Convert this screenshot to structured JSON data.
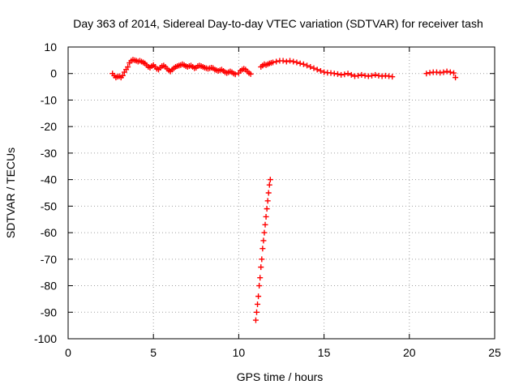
{
  "chart_data": {
    "type": "scatter",
    "title": "Day 363 of 2014, Sidereal Day-to-day VTEC variation (SDTVAR) for receiver tash",
    "xlabel": "GPS time / hours",
    "ylabel": "SDTVAR / TECUs",
    "xlim": [
      0,
      25
    ],
    "ylim": [
      -100,
      10
    ],
    "xticks": [
      0,
      5,
      10,
      15,
      20,
      25
    ],
    "yticks": [
      10,
      0,
      -10,
      -20,
      -30,
      -40,
      -50,
      -60,
      -70,
      -80,
      -90,
      -100
    ],
    "xtick_labels": [
      "0",
      "5",
      "10",
      "15",
      "20",
      "25"
    ],
    "ytick_labels": [
      "10",
      "0",
      "-10",
      "-20",
      "-30",
      "-40",
      "-50",
      "-60",
      "-70",
      "-80",
      "-90",
      "-100"
    ],
    "grid": true,
    "grid_style": "dotted",
    "marker": "+",
    "marker_color": "#ff0000",
    "series": [
      {
        "points": [
          [
            2.6,
            0.0
          ],
          [
            2.7,
            -0.8
          ],
          [
            2.8,
            -1.5
          ],
          [
            2.9,
            -1.2
          ],
          [
            3.0,
            -1.0
          ],
          [
            3.1,
            -1.5
          ],
          [
            3.2,
            -0.8
          ],
          [
            3.3,
            0.5
          ],
          [
            3.4,
            1.5
          ],
          [
            3.5,
            2.5
          ],
          [
            3.6,
            4.0
          ],
          [
            3.7,
            4.8
          ],
          [
            3.8,
            5.2
          ],
          [
            3.9,
            5.0
          ],
          [
            4.0,
            4.8
          ],
          [
            4.1,
            4.5
          ],
          [
            4.2,
            4.8
          ],
          [
            4.3,
            4.5
          ],
          [
            4.4,
            4.2
          ],
          [
            4.5,
            3.8
          ],
          [
            4.6,
            3.2
          ],
          [
            4.7,
            2.5
          ],
          [
            4.8,
            2.2
          ],
          [
            4.9,
            2.8
          ],
          [
            5.0,
            3.2
          ],
          [
            5.1,
            2.5
          ],
          [
            5.2,
            1.8
          ],
          [
            5.3,
            1.5
          ],
          [
            5.4,
            2.2
          ],
          [
            5.5,
            2.8
          ],
          [
            5.6,
            3.0
          ],
          [
            5.7,
            2.5
          ],
          [
            5.8,
            1.8
          ],
          [
            5.9,
            1.2
          ],
          [
            6.0,
            0.8
          ],
          [
            6.1,
            1.5
          ],
          [
            6.2,
            2.0
          ],
          [
            6.3,
            2.5
          ],
          [
            6.4,
            2.8
          ],
          [
            6.5,
            3.0
          ],
          [
            6.6,
            3.2
          ],
          [
            6.7,
            3.5
          ],
          [
            6.8,
            3.2
          ],
          [
            6.9,
            2.8
          ],
          [
            7.0,
            2.5
          ],
          [
            7.1,
            2.8
          ],
          [
            7.2,
            3.0
          ],
          [
            7.3,
            2.5
          ],
          [
            7.4,
            2.0
          ],
          [
            7.5,
            2.2
          ],
          [
            7.6,
            2.8
          ],
          [
            7.7,
            3.0
          ],
          [
            7.8,
            2.8
          ],
          [
            7.9,
            2.5
          ],
          [
            8.0,
            2.2
          ],
          [
            8.1,
            2.0
          ],
          [
            8.2,
            1.8
          ],
          [
            8.3,
            2.0
          ],
          [
            8.4,
            2.2
          ],
          [
            8.5,
            2.0
          ],
          [
            8.6,
            1.5
          ],
          [
            8.7,
            1.2
          ],
          [
            8.8,
            1.0
          ],
          [
            8.9,
            1.2
          ],
          [
            9.0,
            1.5
          ],
          [
            9.1,
            1.0
          ],
          [
            9.2,
            0.5
          ],
          [
            9.3,
            0.2
          ],
          [
            9.4,
            0.5
          ],
          [
            9.5,
            0.8
          ],
          [
            9.6,
            0.5
          ],
          [
            9.7,
            0.0
          ],
          [
            9.8,
            -0.3
          ],
          [
            10.0,
            0.2
          ],
          [
            10.1,
            1.0
          ],
          [
            10.2,
            1.5
          ],
          [
            10.3,
            1.8
          ],
          [
            10.4,
            1.5
          ],
          [
            10.5,
            0.8
          ],
          [
            10.6,
            0.2
          ],
          [
            10.7,
            -0.2
          ],
          [
            11.3,
            2.5
          ],
          [
            11.4,
            3.0
          ],
          [
            11.5,
            3.5
          ],
          [
            11.6,
            3.2
          ],
          [
            11.7,
            3.5
          ],
          [
            11.8,
            3.8
          ],
          [
            11.9,
            4.0
          ],
          [
            12.0,
            4.2
          ],
          [
            12.2,
            4.5
          ],
          [
            12.4,
            4.8
          ],
          [
            12.6,
            4.8
          ],
          [
            12.8,
            4.5
          ],
          [
            13.0,
            4.8
          ],
          [
            13.2,
            4.5
          ],
          [
            13.4,
            4.2
          ],
          [
            13.6,
            3.8
          ],
          [
            13.8,
            3.5
          ],
          [
            14.0,
            3.0
          ],
          [
            14.2,
            2.5
          ],
          [
            14.4,
            2.0
          ],
          [
            14.6,
            1.5
          ],
          [
            14.8,
            1.0
          ],
          [
            15.0,
            0.5
          ],
          [
            15.2,
            0.3
          ],
          [
            15.4,
            0.2
          ],
          [
            15.6,
            0.0
          ],
          [
            15.8,
            -0.2
          ],
          [
            16.0,
            -0.5
          ],
          [
            16.2,
            -0.3
          ],
          [
            16.4,
            0.0
          ],
          [
            16.6,
            -0.5
          ],
          [
            16.8,
            -1.0
          ],
          [
            17.0,
            -0.8
          ],
          [
            17.2,
            -0.5
          ],
          [
            17.4,
            -0.8
          ],
          [
            17.6,
            -1.0
          ],
          [
            17.8,
            -0.8
          ],
          [
            18.0,
            -0.5
          ],
          [
            18.2,
            -0.8
          ],
          [
            18.4,
            -1.0
          ],
          [
            18.6,
            -0.8
          ],
          [
            18.8,
            -1.0
          ],
          [
            19.0,
            -1.2
          ],
          [
            21.0,
            0.0
          ],
          [
            21.2,
            0.3
          ],
          [
            21.4,
            0.5
          ],
          [
            21.6,
            0.5
          ],
          [
            21.8,
            0.3
          ],
          [
            22.0,
            0.5
          ],
          [
            22.2,
            0.8
          ],
          [
            22.4,
            0.5
          ],
          [
            22.6,
            0.2
          ],
          [
            22.7,
            -1.5
          ],
          [
            11.0,
            -93.0
          ],
          [
            11.05,
            -90.0
          ],
          [
            11.1,
            -87.0
          ],
          [
            11.15,
            -84.0
          ],
          [
            11.2,
            -80.0
          ],
          [
            11.25,
            -77.0
          ],
          [
            11.3,
            -73.0
          ],
          [
            11.35,
            -70.0
          ],
          [
            11.4,
            -66.0
          ],
          [
            11.45,
            -63.0
          ],
          [
            11.5,
            -60.0
          ],
          [
            11.55,
            -57.0
          ],
          [
            11.6,
            -54.0
          ],
          [
            11.65,
            -51.0
          ],
          [
            11.7,
            -48.0
          ],
          [
            11.75,
            -45.0
          ],
          [
            11.8,
            -42.0
          ],
          [
            11.85,
            -40.0
          ]
        ]
      }
    ]
  }
}
